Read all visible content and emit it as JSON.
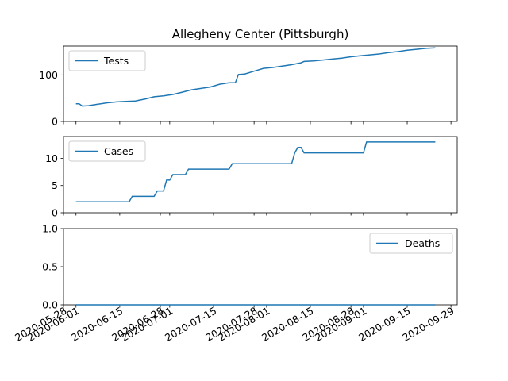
{
  "title": "Allegheny Center (Pittsburgh)",
  "colors": {
    "line": "#1f77b4",
    "axis": "#000000",
    "legend_border": "#cccccc"
  },
  "chart_data": [
    {
      "type": "line",
      "legend": "Tests",
      "legend_position": "upper-left",
      "ylim": [
        0,
        162
      ],
      "yticks": [
        0,
        100
      ],
      "grid": false,
      "x": [
        "2020-06-01",
        "2020-06-02",
        "2020-06-03",
        "2020-06-05",
        "2020-06-08",
        "2020-06-11",
        "2020-06-14",
        "2020-06-17",
        "2020-06-20",
        "2020-06-23",
        "2020-06-26",
        "2020-06-29",
        "2020-07-02",
        "2020-07-05",
        "2020-07-08",
        "2020-07-11",
        "2020-07-14",
        "2020-07-17",
        "2020-07-20",
        "2020-07-22",
        "2020-07-23",
        "2020-07-25",
        "2020-07-28",
        "2020-07-31",
        "2020-08-03",
        "2020-08-06",
        "2020-08-09",
        "2020-08-12",
        "2020-08-13",
        "2020-08-16",
        "2020-08-19",
        "2020-08-22",
        "2020-08-25",
        "2020-08-28",
        "2020-08-31",
        "2020-09-03",
        "2020-09-06",
        "2020-09-09",
        "2020-09-12",
        "2020-09-15",
        "2020-09-18",
        "2020-09-21",
        "2020-09-24"
      ],
      "y": [
        38,
        38,
        33,
        34,
        37,
        40,
        42,
        43,
        44,
        48,
        53,
        55,
        58,
        63,
        68,
        71,
        74,
        80,
        83,
        83,
        101,
        102,
        108,
        114,
        116,
        119,
        122,
        126,
        129,
        130,
        132,
        134,
        136,
        139,
        141,
        143,
        145,
        148,
        150,
        153,
        155,
        157,
        158
      ]
    },
    {
      "type": "line",
      "legend": "Cases",
      "legend_position": "upper-left",
      "ylim": [
        0,
        14
      ],
      "yticks": [
        0,
        5,
        10
      ],
      "grid": false,
      "x": [
        "2020-06-01",
        "2020-06-18",
        "2020-06-19",
        "2020-06-26",
        "2020-06-27",
        "2020-06-29",
        "2020-06-30",
        "2020-07-01",
        "2020-07-02",
        "2020-07-06",
        "2020-07-07",
        "2020-07-20",
        "2020-07-21",
        "2020-08-09",
        "2020-08-10",
        "2020-08-11",
        "2020-08-12",
        "2020-08-13",
        "2020-08-14",
        "2020-08-29",
        "2020-09-01",
        "2020-09-02",
        "2020-09-24"
      ],
      "y": [
        2,
        2,
        3,
        3,
        4,
        4,
        6,
        6,
        7,
        7,
        8,
        8,
        9,
        9,
        11,
        12,
        12,
        11,
        11,
        11,
        11,
        13,
        13
      ]
    },
    {
      "type": "line",
      "legend": "Deaths",
      "legend_position": "upper-right",
      "ylim": [
        0,
        1
      ],
      "yticks": [
        "0.0",
        "0.5",
        "1.0"
      ],
      "grid": false,
      "x": [
        "2020-06-01",
        "2020-09-24"
      ],
      "y": [
        0,
        0
      ]
    }
  ],
  "xaxis": {
    "xlim": [
      "2020-05-28",
      "2020-10-01"
    ],
    "ticks": [
      {
        "date": "2020-05-28",
        "label": "2020-05-28"
      },
      {
        "date": "2020-06-01",
        "label": "2020-06-01"
      },
      {
        "date": "2020-06-15",
        "label": "2020-06-15"
      },
      {
        "date": "2020-06-28",
        "label": "2020-06-28"
      },
      {
        "date": "2020-07-01",
        "label": "2020-07-01"
      },
      {
        "date": "2020-07-15",
        "label": "2020-07-15"
      },
      {
        "date": "2020-07-28",
        "label": "2020-07-28"
      },
      {
        "date": "2020-08-01",
        "label": "2020-08-01"
      },
      {
        "date": "2020-08-15",
        "label": "2020-08-15"
      },
      {
        "date": "2020-08-28",
        "label": "2020-08-28"
      },
      {
        "date": "2020-09-01",
        "label": "2020-09-01"
      },
      {
        "date": "2020-09-15",
        "label": "2020-09-15"
      },
      {
        "date": "2020-09-29",
        "label": "2020-09-29"
      }
    ]
  }
}
